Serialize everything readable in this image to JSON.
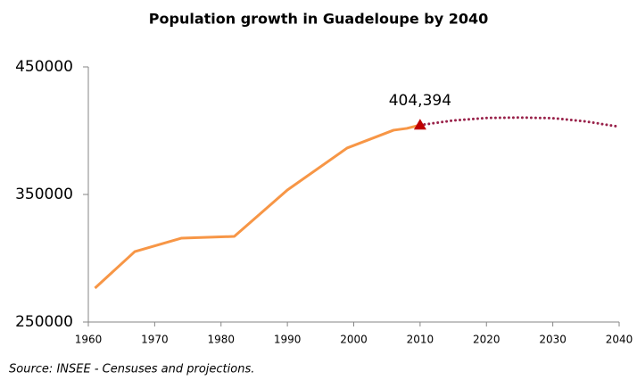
{
  "chart_data": {
    "type": "line",
    "title": "Population growth in Guadeloupe by 2040",
    "source": "Source: INSEE - Censuses and projections.",
    "series": [
      {
        "color": "#f79646",
        "style": "solid",
        "x": [
          1961,
          1967,
          1974,
          1982,
          1990,
          1999,
          2006,
          2008,
          2010
        ],
        "values": [
          276600,
          305200,
          315700,
          317100,
          353500,
          386400,
          400400,
          401800,
          404394
        ]
      },
      {
        "color": "#99224a",
        "style": "dotted",
        "x": [
          2010,
          2015,
          2020,
          2025,
          2030,
          2035,
          2040
        ],
        "values": [
          404394,
          408000,
          410000,
          410300,
          409800,
          407200,
          403100
        ]
      }
    ],
    "annotations": [
      {
        "x": 2010,
        "value": 404394,
        "label": "404,394",
        "color": "#c00000"
      }
    ],
    "xlim": [
      1960,
      2040
    ],
    "xticks": [
      1960,
      1970,
      1980,
      1990,
      2000,
      2010,
      2020,
      2030,
      2040
    ],
    "ylim": [
      250000,
      450000
    ],
    "yticks": [
      250000,
      350000,
      450000
    ],
    "grid": false
  }
}
